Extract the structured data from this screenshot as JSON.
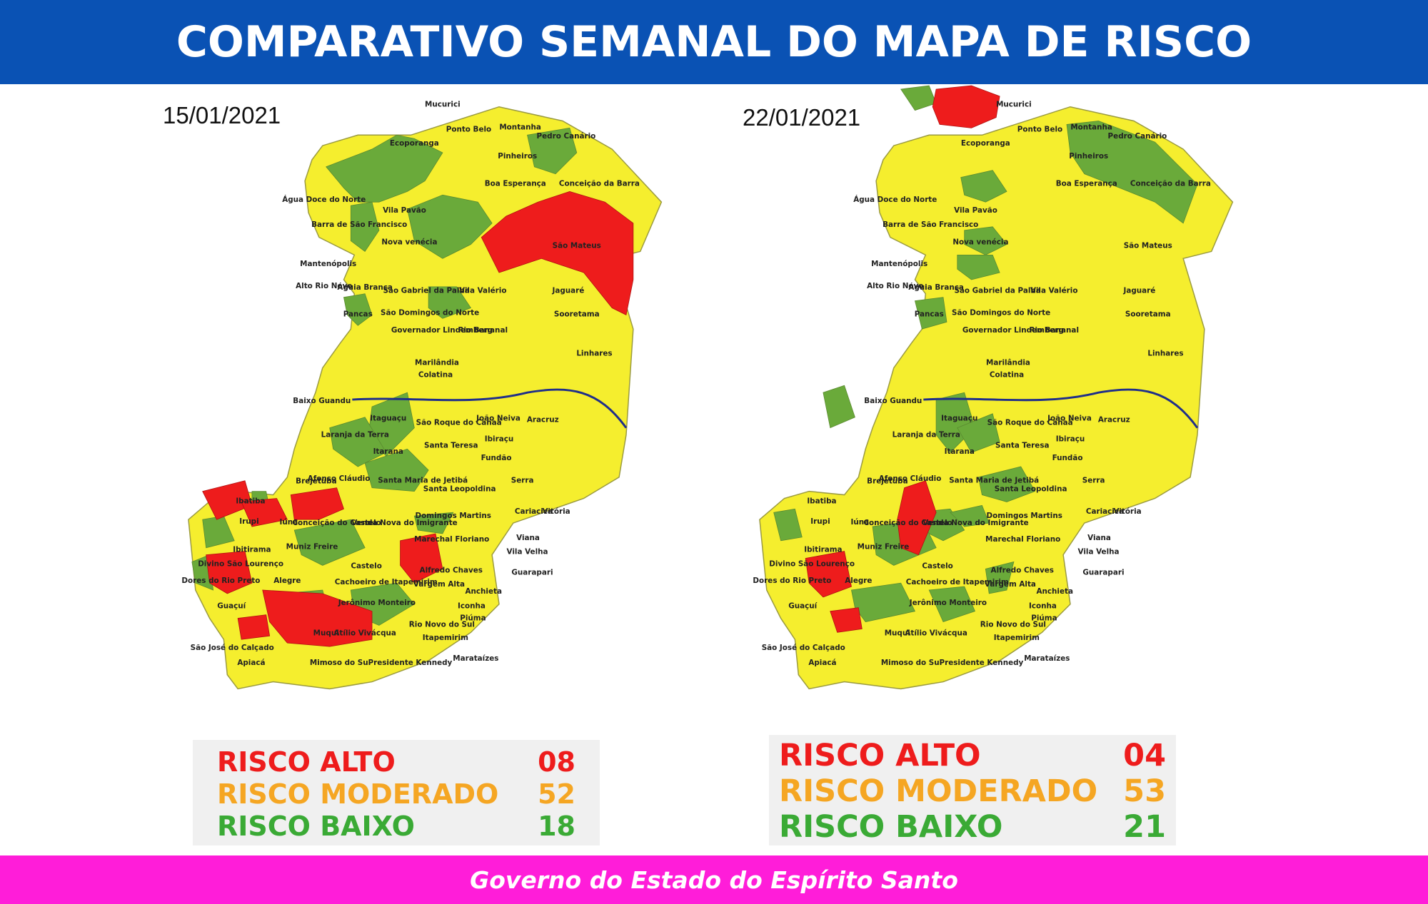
{
  "header": {
    "title": "COMPARATIVO SEMANAL DO MAPA DE RISCO"
  },
  "colors": {
    "high": "#ee1c1c",
    "moderate": "#f5ee2e",
    "low": "#6aaa3a",
    "river": "#1f2e8a",
    "header_bg": "#0a52b4",
    "footer_bg": "#ff1dd9"
  },
  "maps": [
    {
      "date": "15/01/2021",
      "high_regions": [
        "Ibatiba",
        "Iúna",
        "Conceição do Castelo",
        "Guaçuí",
        "Mimoso do Sul",
        "Apiacá",
        "Anchieta",
        "São Mateus"
      ],
      "labels": [
        "Mucurici",
        "Montanha",
        "Pedro Canário",
        "Ponto Belo",
        "Ecoporanga",
        "Pinheiros",
        "Conceição da Barra",
        "Boa Esperança",
        "Água Doce do Norte",
        "Barra de São Francisco",
        "Vila Pavão",
        "São Mateus",
        "Nova venécia",
        "Mantenópolis",
        "Alto Rio Novo",
        "Águia Branca",
        "São Gabriel da Palha",
        "Vila Valério",
        "Jaguaré",
        "Pancas",
        "São Domingos do Norte",
        "Sooretama",
        "Governador Lindemberg",
        "Rio Bananal",
        "Linhares",
        "Marilândia",
        "Colatina",
        "Baixo Guandu",
        "Itaguaçu",
        "São Roque do Canaã",
        "João Neiva",
        "Aracruz",
        "Laranja da Terra",
        "Ibiraçu",
        "Santa Teresa",
        "Itarana",
        "Fundão",
        "Afonso Cláudio",
        "Santa Maria de Jetibá",
        "Serra",
        "Santa Leopoldina",
        "Brejetuba",
        "Ibatiba",
        "Cariacica",
        "Vitória",
        "Domingos Martins",
        "Irupi",
        "Iúna",
        "Conceição do Castelo",
        "Venda Nova do Imigrante",
        "Viana",
        "Marechal Floriano",
        "Ibitirama",
        "Muniz Freire",
        "Vila Velha",
        "Divino São Lourenço",
        "Castelo",
        "Alfredo Chaves",
        "Guarapari",
        "Dores do Rio Preto",
        "Alegre",
        "Cachoeiro de Itapemirim",
        "Vargem Alta",
        "Anchieta",
        "Guaçuí",
        "Jerônimo Monteiro",
        "Iconha",
        "Rio Novo do Sul",
        "Piúma",
        "Muqui",
        "Atílio Vivácqua",
        "Itapemirim",
        "São José do Calçado",
        "Marataízes",
        "Apiacá",
        "Mimoso do Sul",
        "Presidente Kennedy"
      ]
    },
    {
      "date": "22/01/2021",
      "high_regions": [
        "Montanha",
        "Muniz Freire",
        "Guaçuí",
        "Apiacá"
      ],
      "labels": [
        "Mucurici",
        "Montanha",
        "Pedro Canário",
        "Ponto Belo",
        "Ecoporanga",
        "Pinheiros",
        "Conceição da Barra",
        "Boa Esperança",
        "Água Doce do Norte",
        "Barra de São Francisco",
        "Vila Pavão",
        "São Mateus",
        "Nova venécia",
        "Mantenópolis",
        "Alto Rio Novo",
        "Águia Branca",
        "São Gabriel da Palha",
        "Vila Valério",
        "Jaguaré",
        "Pancas",
        "São Domingos do Norte",
        "Sooretama",
        "Governador Lindemberg",
        "Rio Bananal",
        "Linhares",
        "Marilândia",
        "Colatina",
        "Baixo Guandu",
        "Itaguaçu",
        "São Roque do Canaã",
        "João Neiva",
        "Aracruz",
        "Laranja da Terra",
        "Ibiraçu",
        "Santa Teresa",
        "Itarana",
        "Fundão",
        "Afonso Cláudio",
        "Santa Maria de Jetibá",
        "Serra",
        "Santa Leopoldina",
        "Brejetuba",
        "Ibatiba",
        "Cariacica",
        "Vitória",
        "Domingos Martins",
        "Irupi",
        "Iúna",
        "Conceição do Castelo",
        "Venda Nova do Imigrante",
        "Viana",
        "Marechal Floriano",
        "Ibitirama",
        "Muniz Freire",
        "Vila Velha",
        "Divino São Lourenço",
        "Castelo",
        "Alfredo Chaves",
        "Guarapari",
        "Dores do Rio Preto",
        "Alegre",
        "Cachoeiro de Itapemirim",
        "Vargem Alta",
        "Anchieta",
        "Guaçuí",
        "Jerônimo Monteiro",
        "Iconha",
        "Rio Novo do Sul",
        "Piúma",
        "Muqui",
        "Atílio Vivácqua",
        "Itapemirim",
        "São José do Calçado",
        "Marataízes",
        "Apiacá",
        "Mimoso do Sul",
        "Presidente Kennedy"
      ]
    }
  ],
  "legends": [
    {
      "high_label": "RISCO ALTO",
      "high_value": "08",
      "moderate_label": "RISCO MODERADO",
      "moderate_value": "52",
      "low_label": "RISCO BAIXO",
      "low_value": "18"
    },
    {
      "high_label": "RISCO ALTO",
      "high_value": "04",
      "moderate_label": "RISCO MODERADO",
      "moderate_value": "53",
      "low_label": "RISCO BAIXO",
      "low_value": "21"
    }
  ],
  "footer": {
    "text": "Governo do Estado do Espírito Santo"
  }
}
